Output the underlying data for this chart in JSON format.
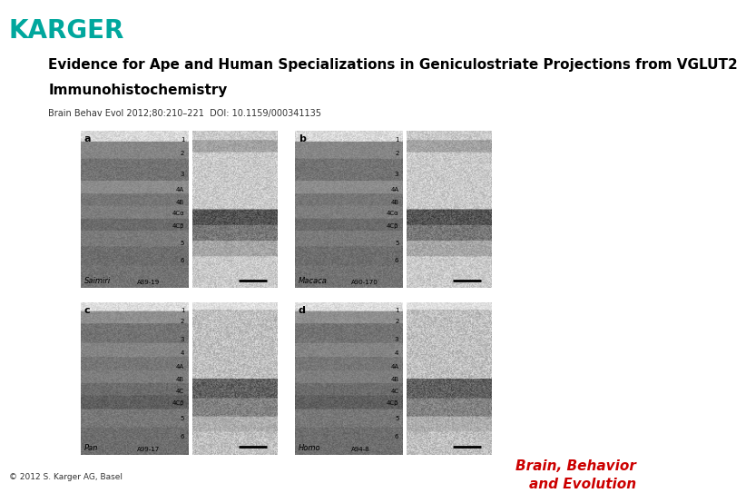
{
  "title_line1": "Evidence for Ape and Human Specializations in Geniculostriate Projections from VGLUT2",
  "title_line2": "Immunohistochemistry",
  "subtitle": "Brain Behav Evol 2012;80:210–221  DOI: 10.1159/000341135",
  "karger_color": "#00a79d",
  "copyright": "© 2012 S. Karger AG, Basel",
  "journal_line1": "Brain, Behavior",
  "journal_line2": "and Evolution",
  "journal_color": "#cc0000",
  "bg_color": "#ffffff",
  "title_fontsize": 11,
  "subtitle_fontsize": 7,
  "karger_fontsize": 20,
  "species_labels": [
    "Saimiri",
    "Macaca",
    "Pan",
    "Homo"
  ],
  "sample_ids": [
    "A89-19",
    "A90-170",
    "A99-17",
    "A94-8"
  ]
}
